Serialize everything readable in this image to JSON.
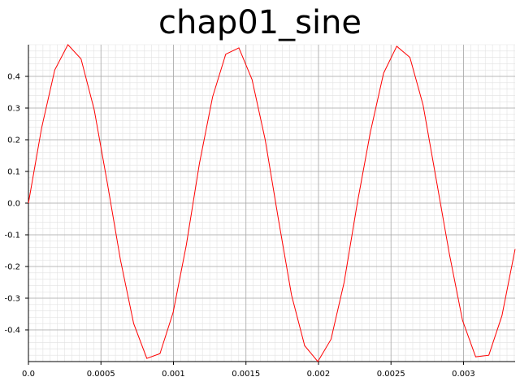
{
  "chart_data": {
    "type": "line",
    "title": "chap01_sine",
    "xlabel": "",
    "ylabel": "",
    "xlim": [
      0.0,
      0.003356
    ],
    "ylim": [
      -0.5,
      0.5
    ],
    "grid": true,
    "minor_grid": true,
    "x_ticks": [
      0.0,
      0.0005,
      0.001,
      0.0015,
      0.002,
      0.0025,
      0.003
    ],
    "x_tick_labels": [
      "0.0",
      "0.0005",
      "0.001",
      "0.0015",
      "0.002",
      "0.0025",
      "0.003"
    ],
    "y_ticks": [
      -0.4,
      -0.3,
      -0.2,
      -0.1,
      0.0,
      0.1,
      0.2,
      0.3,
      0.4
    ],
    "y_tick_labels": [
      "-0.4",
      "-0.3",
      "-0.2",
      "-0.1",
      "0.0",
      "0.1",
      "0.2",
      "0.3",
      "0.4"
    ],
    "series": [
      {
        "color": "#ff0000",
        "x": [
          0.0,
          9.07e-05,
          0.0001814,
          0.0002721,
          0.0003628,
          0.0004535,
          0.0005442,
          0.0006349,
          0.0007256,
          0.0008163,
          0.000907,
          0.0009977,
          0.0010884,
          0.0011791,
          0.0012698,
          0.0013605,
          0.0014512,
          0.0015419,
          0.0016326,
          0.0017234,
          0.0018141,
          0.0019048,
          0.0019955,
          0.0020862,
          0.0021769,
          0.0022676,
          0.0023583,
          0.002449,
          0.0025397,
          0.0026304,
          0.0027211,
          0.0028118,
          0.0029025,
          0.0029932,
          0.0030839,
          0.0031746,
          0.0032653,
          0.003356
        ],
        "values": [
          0.0,
          0.237,
          0.42,
          0.5,
          0.455,
          0.295,
          0.063,
          -0.18,
          -0.38,
          -0.49,
          -0.475,
          -0.345,
          -0.133,
          0.125,
          0.335,
          0.47,
          0.49,
          0.39,
          0.2,
          -0.05,
          -0.29,
          -0.45,
          -0.5,
          -0.43,
          -0.25,
          0.0,
          0.225,
          0.41,
          0.495,
          0.46,
          0.31,
          0.075,
          -0.16,
          -0.37,
          -0.485,
          -0.48,
          -0.355,
          -0.145
        ]
      }
    ]
  }
}
